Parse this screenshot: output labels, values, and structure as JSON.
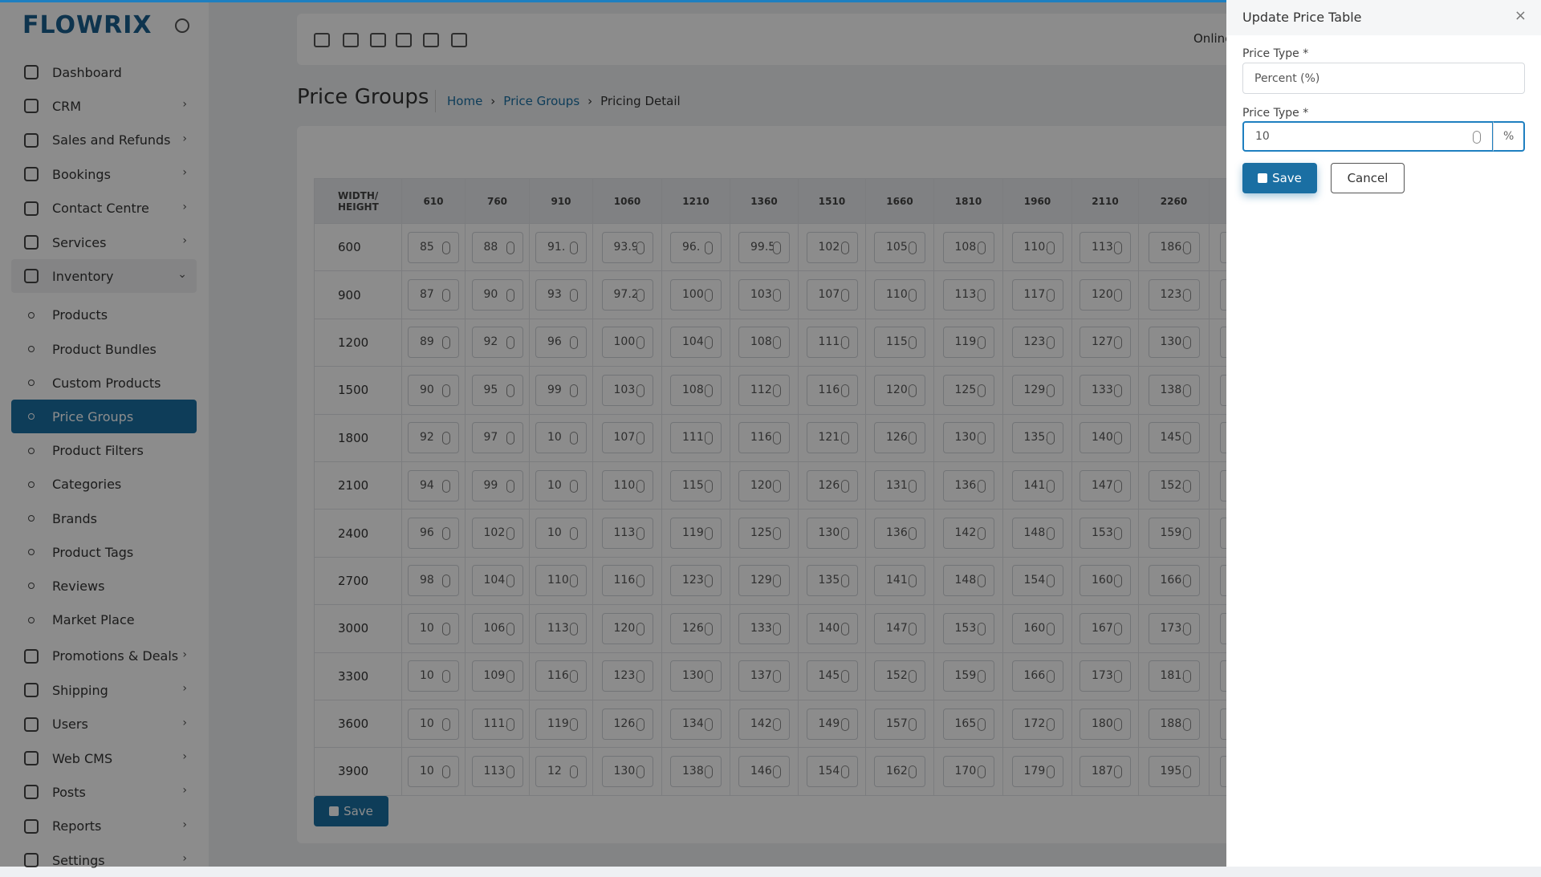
{
  "sidebar": {
    "logo": "FLOWRIX",
    "menu": [
      {
        "label": "Dashboard"
      },
      {
        "label": "CRM"
      },
      {
        "label": "Sales and Refunds"
      },
      {
        "label": "Bookings"
      },
      {
        "label": "Contact Centre"
      },
      {
        "label": "Services"
      },
      {
        "label": "Inventory",
        "children": [
          "Products",
          "Product Bundles",
          "Custom Products",
          "Price Groups",
          "Product Filters",
          "Categories",
          "Brands",
          "Product Tags",
          "Reviews",
          "Market Place"
        ]
      },
      {
        "label": "Promotions & Deals"
      },
      {
        "label": "Shipping"
      },
      {
        "label": "Users"
      },
      {
        "label": "Web CMS"
      },
      {
        "label": "Posts"
      },
      {
        "label": "Reports"
      },
      {
        "label": "Settings"
      }
    ]
  },
  "header": {
    "status": "Online"
  },
  "page": {
    "title": "Price Groups",
    "breadcrumb": [
      "Home",
      "Price Groups",
      "Pricing Detail"
    ],
    "save": "Save"
  },
  "table": {
    "corner": "WIDTH/ HEIGHT",
    "columns": [
      "610",
      "760",
      "910",
      "1060",
      "1210",
      "1360",
      "1510",
      "1660",
      "1810",
      "1960",
      "2110",
      "2260"
    ],
    "rows": [
      {
        "height": "600",
        "cells": [
          "85",
          "88",
          "91.",
          "93.9",
          "96.",
          "99.5",
          "102",
          "105.",
          "108",
          "110.",
          "113.",
          "186."
        ]
      },
      {
        "height": "900",
        "cells": [
          "87",
          "90",
          "93",
          "97.2",
          "100",
          "103.",
          "107",
          "110.",
          "113.",
          "117.1",
          "120",
          "123."
        ]
      },
      {
        "height": "1200",
        "cells": [
          "89",
          "92",
          "96",
          "100",
          "104",
          "108",
          "111.",
          "115.",
          "119.",
          "123.",
          "127",
          "130."
        ]
      },
      {
        "height": "1500",
        "cells": [
          "90",
          "95",
          "99",
          "103.",
          "108",
          "112.",
          "116",
          "120.",
          "125",
          "129.",
          "133",
          "138."
        ]
      },
      {
        "height": "1800",
        "cells": [
          "92",
          "97",
          "10",
          "107.",
          "111.",
          "116.",
          "121.",
          "126.",
          "130",
          "135.",
          "140",
          "145."
        ]
      },
      {
        "height": "2100",
        "cells": [
          "94",
          "99",
          "10",
          "110.",
          "115.",
          "120",
          "126",
          "131.",
          "136",
          "141.",
          "147",
          "152."
        ]
      },
      {
        "height": "2400",
        "cells": [
          "96",
          "102",
          "10",
          "113.",
          "119.",
          "125.",
          "130",
          "136.",
          "142",
          "148",
          "153",
          "159."
        ]
      },
      {
        "height": "2700",
        "cells": [
          "98",
          "104",
          "110",
          "116.",
          "123",
          "129.",
          "135",
          "141.",
          "148",
          "154",
          "160",
          "166."
        ]
      },
      {
        "height": "3000",
        "cells": [
          "10",
          "106",
          "113",
          "120.",
          "126",
          "133.",
          "140",
          "147.",
          "153",
          "160",
          "167",
          "173."
        ]
      },
      {
        "height": "3300",
        "cells": [
          "10",
          "109",
          "116",
          "123.",
          "130",
          "137.",
          "145",
          "152.",
          "159",
          "166",
          "173",
          "181."
        ]
      },
      {
        "height": "3600",
        "cells": [
          "10",
          "111.",
          "119",
          "126.",
          "134",
          "142",
          "149",
          "157.",
          "165",
          "172.",
          "180",
          "188."
        ]
      },
      {
        "height": "3900",
        "cells": [
          "10",
          "113",
          "12",
          "130.",
          "138",
          "146",
          "154",
          "162.",
          "170",
          "179",
          "187",
          "195."
        ]
      }
    ]
  },
  "modal": {
    "title": "Update Price Table",
    "close": "×",
    "field1_label": "Price Type *",
    "field1_value": "Percent (%)",
    "field2_label": "Price Type *",
    "field2_value": "10",
    "field2_unit": "%",
    "save": "Save",
    "cancel": "Cancel"
  }
}
